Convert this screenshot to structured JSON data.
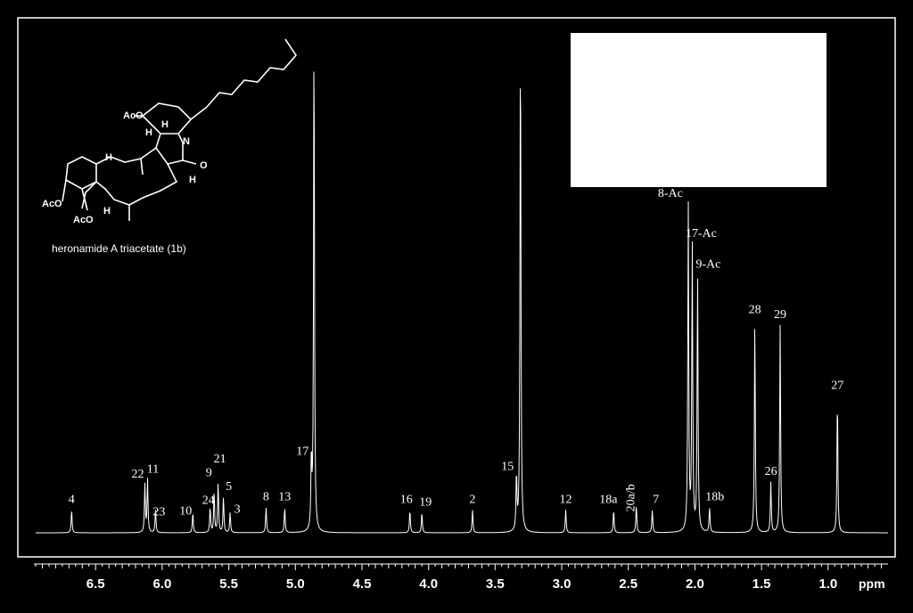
{
  "chart_data": {
    "type": "line",
    "title": "",
    "xlabel": "ppm",
    "ylabel": "",
    "x_reversed": true,
    "xlim": [
      6.95,
      0.55
    ],
    "ylim": [
      0,
      100
    ],
    "x_ticks": [
      6.5,
      6.0,
      5.5,
      5.0,
      4.5,
      4.0,
      3.5,
      3.0,
      2.5,
      2.0,
      1.5,
      1.0
    ],
    "x_tick_labels": [
      "6.5",
      "6.0",
      "5.5",
      "5.0",
      "4.5",
      "4.0",
      "3.5",
      "3.0",
      "2.5",
      "2.0",
      "1.5",
      "1.0"
    ],
    "peaks": [
      {
        "label": "4",
        "x": 6.68,
        "height": 4.5
      },
      {
        "label": "22",
        "x": 6.13,
        "height": 9.5
      },
      {
        "label": "11",
        "x": 6.11,
        "height": 10.5
      },
      {
        "label": "23",
        "x": 6.05,
        "height": 4.5
      },
      {
        "label": "10",
        "x": 5.77,
        "height": 4.0
      },
      {
        "label": "24",
        "x": 5.64,
        "height": 5.0
      },
      {
        "label": "9",
        "x": 5.61,
        "height": 8.0
      },
      {
        "label": "21",
        "x": 5.58,
        "height": 10.0
      },
      {
        "label": "5",
        "x": 5.54,
        "height": 7.0
      },
      {
        "label": "3",
        "x": 5.49,
        "height": 4.0
      },
      {
        "label": "8",
        "x": 5.22,
        "height": 5.0
      },
      {
        "label": "13",
        "x": 5.08,
        "height": 5.0
      },
      {
        "label": "17",
        "x": 4.88,
        "height": 14.0
      },
      {
        "label": "",
        "x": 4.86,
        "height": 100
      },
      {
        "label": "16",
        "x": 4.14,
        "height": 4.5
      },
      {
        "label": "19",
        "x": 4.05,
        "height": 4.0
      },
      {
        "label": "2",
        "x": 3.67,
        "height": 4.5
      },
      {
        "label": "15",
        "x": 3.34,
        "height": 11.0
      },
      {
        "label": "",
        "x": 3.31,
        "height": 100
      },
      {
        "label": "12",
        "x": 2.97,
        "height": 4.5
      },
      {
        "label": "18a",
        "x": 2.61,
        "height": 4.5
      },
      {
        "label": "20a/b",
        "x": 2.44,
        "height": 5.5
      },
      {
        "label": "7",
        "x": 2.32,
        "height": 4.5
      },
      {
        "label": "8-Ac",
        "x": 2.05,
        "height": 65.0
      },
      {
        "label": "17-Ac",
        "x": 2.02,
        "height": 57.0
      },
      {
        "label": "9-Ac",
        "x": 1.98,
        "height": 51.0
      },
      {
        "label": "18b",
        "x": 1.89,
        "height": 5.0
      },
      {
        "label": "28",
        "x": 1.55,
        "height": 42.0
      },
      {
        "label": "26",
        "x": 1.43,
        "height": 10.0
      },
      {
        "label": "29",
        "x": 1.36,
        "height": 41.0
      },
      {
        "label": "27",
        "x": 0.93,
        "height": 27.0
      }
    ]
  },
  "structure": {
    "caption": "heronamide A triacetate (1b)",
    "atoms": [
      "AcO",
      "N",
      "H",
      "H",
      "H",
      "O",
      "H",
      "AcO",
      "AcO",
      "H"
    ]
  }
}
